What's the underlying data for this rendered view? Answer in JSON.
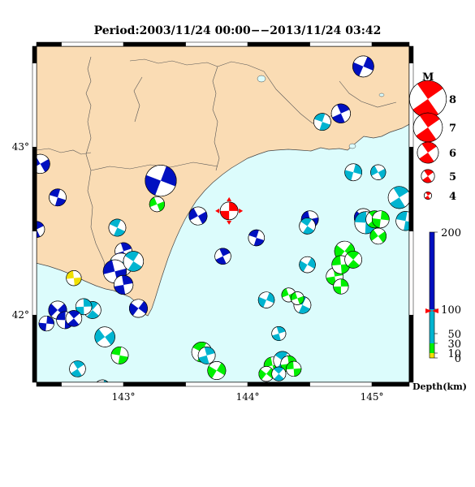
{
  "title": "Period:2003/11/24 00:00−−2013/11/24 03:42",
  "map": {
    "lon_ticks": [
      {
        "value": 143,
        "label": "143°"
      },
      {
        "value": 144,
        "label": "144°"
      },
      {
        "value": 145,
        "label": "145°"
      }
    ],
    "lat_ticks": [
      {
        "value": 43,
        "label": "43°"
      },
      {
        "value": 42,
        "label": "42°"
      }
    ],
    "colors": {
      "land": "#fadcb4",
      "sea": "#dcfcfc",
      "frame": "#000000"
    },
    "mainshock": {
      "lon": 143.85,
      "lat": 42.62,
      "color": "#ff0000"
    }
  },
  "magnitude_legend": {
    "header": "M",
    "items": [
      {
        "label": "8",
        "mag": 8
      },
      {
        "label": "7",
        "mag": 7
      },
      {
        "label": "6",
        "mag": 6
      },
      {
        "label": "5",
        "mag": 5
      },
      {
        "label": "4",
        "mag": 4
      }
    ]
  },
  "depth_legend": {
    "label": "Depth(km)",
    "ticks": [
      "200",
      "100",
      "50",
      "30",
      "10",
      "0"
    ],
    "colors": {
      "0-10": "#f0e000",
      "10-30": "#00f000",
      "30-100": "#00b4d0",
      "100-200": "#0010c0"
    }
  },
  "events": [
    {
      "lon": 142.33,
      "lat": 42.9,
      "mag": 5.2,
      "color": "#0010c0"
    },
    {
      "lon": 142.47,
      "lat": 42.7,
      "mag": 5.0,
      "color": "#0010c0"
    },
    {
      "lon": 142.3,
      "lat": 42.51,
      "mag": 4.9,
      "color": "#0010c0"
    },
    {
      "lon": 143.3,
      "lat": 42.8,
      "mag": 6.4,
      "color": "#0010c0"
    },
    {
      "lon": 143.27,
      "lat": 42.66,
      "mag": 4.8,
      "color": "#00f000"
    },
    {
      "lon": 142.95,
      "lat": 42.52,
      "mag": 5.0,
      "color": "#00b4d0"
    },
    {
      "lon": 143.0,
      "lat": 42.38,
      "mag": 5.0,
      "color": "#0010c0"
    },
    {
      "lon": 142.98,
      "lat": 42.3,
      "mag": 5.6,
      "color": "#00b4d0"
    },
    {
      "lon": 142.93,
      "lat": 42.26,
      "mag": 5.6,
      "color": "#0010c0"
    },
    {
      "lon": 143.08,
      "lat": 42.32,
      "mag": 5.3,
      "color": "#00b4d0"
    },
    {
      "lon": 143.0,
      "lat": 42.18,
      "mag": 5.2,
      "color": "#0010c0"
    },
    {
      "lon": 143.12,
      "lat": 42.04,
      "mag": 5.1,
      "color": "#0010c0"
    },
    {
      "lon": 142.6,
      "lat": 42.22,
      "mag": 4.8,
      "color": "#f0e000"
    },
    {
      "lon": 142.75,
      "lat": 42.03,
      "mag": 5.0,
      "color": "#00b4d0"
    },
    {
      "lon": 142.68,
      "lat": 42.05,
      "mag": 4.9,
      "color": "#00b4d0"
    },
    {
      "lon": 142.47,
      "lat": 42.03,
      "mag": 5.1,
      "color": "#0010c0"
    },
    {
      "lon": 142.53,
      "lat": 41.97,
      "mag": 5.0,
      "color": "#0010c0"
    },
    {
      "lon": 142.6,
      "lat": 41.98,
      "mag": 4.9,
      "color": "#0010c0"
    },
    {
      "lon": 142.38,
      "lat": 41.95,
      "mag": 4.8,
      "color": "#0010c0"
    },
    {
      "lon": 142.85,
      "lat": 41.87,
      "mag": 5.3,
      "color": "#00b4d0"
    },
    {
      "lon": 142.97,
      "lat": 41.76,
      "mag": 5.0,
      "color": "#00f000"
    },
    {
      "lon": 142.63,
      "lat": 41.68,
      "mag": 4.9,
      "color": "#00b4d0"
    },
    {
      "lon": 142.83,
      "lat": 41.57,
      "mag": 4.8,
      "color": "#00b4d0"
    },
    {
      "lon": 143.6,
      "lat": 42.59,
      "mag": 5.1,
      "color": "#0010c0"
    },
    {
      "lon": 144.07,
      "lat": 42.46,
      "mag": 4.9,
      "color": "#0010c0"
    },
    {
      "lon": 143.8,
      "lat": 42.35,
      "mag": 4.9,
      "color": "#0010c0"
    },
    {
      "lon": 144.15,
      "lat": 42.09,
      "mag": 4.9,
      "color": "#00b4d0"
    },
    {
      "lon": 144.33,
      "lat": 42.12,
      "mag": 4.7,
      "color": "#00f000"
    },
    {
      "lon": 144.44,
      "lat": 42.06,
      "mag": 5.0,
      "color": "#00b4d0"
    },
    {
      "lon": 144.25,
      "lat": 41.89,
      "mag": 4.7,
      "color": "#00b4d0"
    },
    {
      "lon": 144.48,
      "lat": 42.3,
      "mag": 4.9,
      "color": "#00b4d0"
    },
    {
      "lon": 144.5,
      "lat": 42.57,
      "mag": 5.0,
      "color": "#0010c0"
    },
    {
      "lon": 144.48,
      "lat": 42.53,
      "mag": 4.9,
      "color": "#00b4d0"
    },
    {
      "lon": 144.7,
      "lat": 42.23,
      "mag": 5.0,
      "color": "#00f000"
    },
    {
      "lon": 144.78,
      "lat": 42.38,
      "mag": 5.3,
      "color": "#00f000"
    },
    {
      "lon": 144.75,
      "lat": 42.3,
      "mag": 5.1,
      "color": "#00f000"
    },
    {
      "lon": 144.85,
      "lat": 42.33,
      "mag": 5.0,
      "color": "#00f000"
    },
    {
      "lon": 144.75,
      "lat": 42.17,
      "mag": 4.8,
      "color": "#00f000"
    },
    {
      "lon": 144.93,
      "lat": 42.58,
      "mag": 5.1,
      "color": "#0010c0"
    },
    {
      "lon": 144.95,
      "lat": 42.55,
      "mag": 5.5,
      "color": "#00b4d0"
    },
    {
      "lon": 145.02,
      "lat": 42.57,
      "mag": 5.0,
      "color": "#00f000"
    },
    {
      "lon": 145.07,
      "lat": 42.57,
      "mag": 5.0,
      "color": "#00f000"
    },
    {
      "lon": 145.05,
      "lat": 42.47,
      "mag": 4.9,
      "color": "#00f000"
    },
    {
      "lon": 145.27,
      "lat": 42.56,
      "mag": 5.2,
      "color": "#00b4d0"
    },
    {
      "lon": 145.22,
      "lat": 42.7,
      "mag": 5.5,
      "color": "#00b4d0"
    },
    {
      "lon": 144.85,
      "lat": 42.85,
      "mag": 5.0,
      "color": "#00b4d0"
    },
    {
      "lon": 145.05,
      "lat": 42.85,
      "mag": 4.8,
      "color": "#00b4d0"
    },
    {
      "lon": 144.6,
      "lat": 43.15,
      "mag": 5.0,
      "color": "#00b4d0"
    },
    {
      "lon": 144.75,
      "lat": 43.2,
      "mag": 5.2,
      "color": "#0010c0"
    },
    {
      "lon": 144.93,
      "lat": 43.48,
      "mag": 5.4,
      "color": "#0010c0"
    },
    {
      "lon": 144.4,
      "lat": 42.1,
      "mag": 4.6,
      "color": "#00f000"
    },
    {
      "lon": 143.63,
      "lat": 41.78,
      "mag": 5.3,
      "color": "#00f000"
    },
    {
      "lon": 143.67,
      "lat": 41.76,
      "mag": 5.0,
      "color": "#00b4d0"
    },
    {
      "lon": 143.75,
      "lat": 41.67,
      "mag": 5.1,
      "color": "#00f000"
    },
    {
      "lon": 144.2,
      "lat": 41.7,
      "mag": 5.0,
      "color": "#00f000"
    },
    {
      "lon": 144.28,
      "lat": 41.73,
      "mag": 5.1,
      "color": "#00b4d0"
    },
    {
      "lon": 144.33,
      "lat": 41.71,
      "mag": 4.9,
      "color": "#00f000"
    },
    {
      "lon": 144.15,
      "lat": 41.65,
      "mag": 4.8,
      "color": "#00f000"
    },
    {
      "lon": 144.37,
      "lat": 41.68,
      "mag": 4.8,
      "color": "#00f000"
    },
    {
      "lon": 144.25,
      "lat": 41.65,
      "mag": 4.7,
      "color": "#00b4d0"
    }
  ]
}
